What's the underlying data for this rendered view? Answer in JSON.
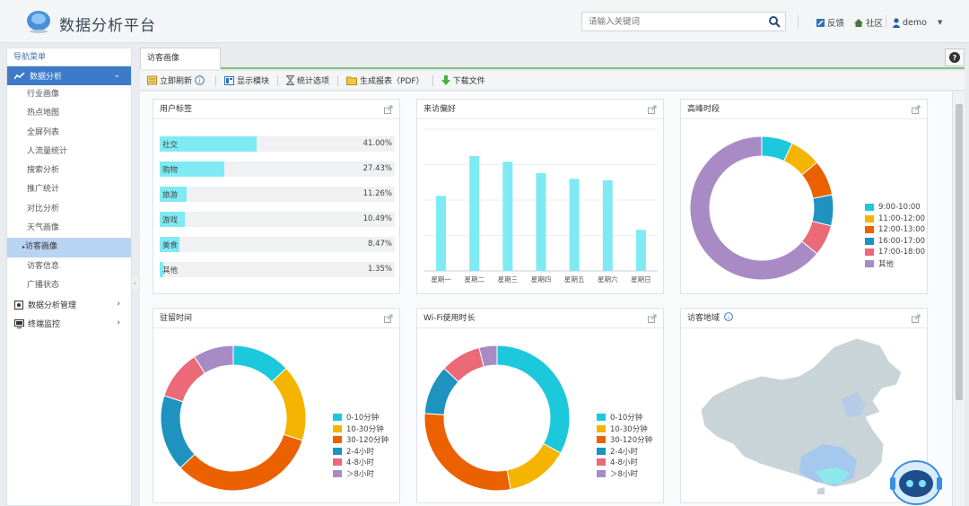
{
  "app": {
    "title": "数据分析平台"
  },
  "header": {
    "search_placeholder": "请输入关键词",
    "feedback": "反馈",
    "community": "社区",
    "user": "demo"
  },
  "sidebar": {
    "title": "导航菜单",
    "group_active": "数据分析",
    "items": [
      "行业画像",
      "热点地图",
      "全屏列表",
      "人流量统计",
      "搜索分析",
      "推广统计",
      "对比分析",
      "天气画像",
      "访客画像",
      "访客信息",
      "广播状态"
    ],
    "active_item": "访客画像",
    "groups": [
      "数据分析管理",
      "终端监控"
    ]
  },
  "tabs": {
    "active": "访客画像"
  },
  "toolbar": {
    "refresh": "立即刷新",
    "modules": "显示模块",
    "stats": "统计选项",
    "report": "生成报表（PDF）",
    "download": "下载文件"
  },
  "colors": {
    "accent": "#3d7ac9",
    "cyan": "#7feaf3",
    "c1": "#1cc8dc",
    "c2": "#f5b400",
    "c3": "#eb6100",
    "c4": "#1e93bf",
    "c5": "#ec6978",
    "c6": "#a88bc4"
  },
  "panels": {
    "tags": {
      "title": "用户标签",
      "rows": [
        {
          "name": "社交",
          "value": "41.00%",
          "pct": 41.0
        },
        {
          "name": "购物",
          "value": "27.43%",
          "pct": 27.43
        },
        {
          "name": "旅游",
          "value": "11.26%",
          "pct": 11.26
        },
        {
          "name": "游戏",
          "value": "10.49%",
          "pct": 10.49
        },
        {
          "name": "美食",
          "value": "8.47%",
          "pct": 8.47
        },
        {
          "name": "其他",
          "value": "1.35%",
          "pct": 1.35
        }
      ]
    },
    "pref": {
      "title": "来访偏好"
    },
    "peak": {
      "title": "高峰时段"
    },
    "stay": {
      "title": "驻留时间"
    },
    "wifi": {
      "title": "Wi-Fi使用时长"
    },
    "region": {
      "title": "访客地域"
    }
  },
  "chart_data": [
    {
      "type": "bar",
      "title": "来访偏好",
      "categories": [
        "星期一",
        "星期二",
        "星期三",
        "星期四",
        "星期五",
        "星期六",
        "星期日"
      ],
      "values": [
        53,
        81,
        77,
        69,
        65,
        64,
        29
      ],
      "ylim": [
        0,
        100
      ],
      "grid": true
    },
    {
      "type": "pie",
      "title": "高峰时段",
      "labels": [
        "9:00-10:00",
        "11:00-12:00",
        "12:00-13:00",
        "16:00-17:00",
        "17:00-18:00",
        "其他"
      ],
      "values": [
        7,
        7,
        8,
        7,
        7,
        64
      ]
    },
    {
      "type": "pie",
      "title": "驻留时间",
      "labels": [
        "0-10分钟",
        "10-30分钟",
        "30-120分钟",
        "2-4小时",
        "4-8小时",
        "＞8小时"
      ],
      "values": [
        13,
        17,
        33,
        17,
        11,
        9
      ]
    },
    {
      "type": "pie",
      "title": "Wi-Fi使用时长",
      "labels": [
        "0-10分钟",
        "10-30分钟",
        "30-120分钟",
        "2-4小时",
        "4-8小时",
        "＞8小时"
      ],
      "values": [
        33,
        14,
        29,
        11,
        9,
        4
      ]
    }
  ]
}
